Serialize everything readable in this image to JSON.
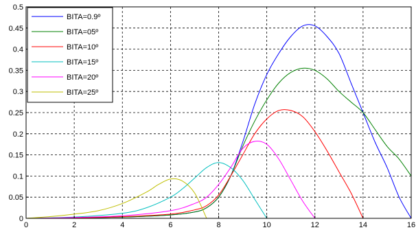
{
  "chart_data": {
    "type": "line",
    "title": "",
    "xlabel": "",
    "ylabel": "",
    "xlim": [
      0,
      16
    ],
    "ylim": [
      0,
      0.5
    ],
    "xticks": [
      0,
      2,
      4,
      6,
      8,
      10,
      12,
      14,
      16
    ],
    "yticks": [
      0,
      0.05,
      0.1,
      0.15,
      0.2,
      0.25,
      0.3,
      0.35,
      0.4,
      0.45,
      0.5
    ],
    "xtick_labels": [
      "0",
      "2",
      "4",
      "6",
      "8",
      "10",
      "12",
      "14",
      "16"
    ],
    "ytick_labels": [
      "0",
      "0.05",
      "0.1",
      "0.15",
      "0.2",
      "0.25",
      "0.3",
      "0.35",
      "0.4",
      "0.45",
      "0.5"
    ],
    "grid": true,
    "grid_style": "dashed",
    "legend_position": "top-left",
    "series": [
      {
        "name": "BITA=0.9º",
        "color": "#0000ff",
        "points": [
          [
            0,
            0
          ],
          [
            2,
            0.001
          ],
          [
            4,
            0.003
          ],
          [
            6,
            0.008
          ],
          [
            7,
            0.015
          ],
          [
            7.5,
            0.025
          ],
          [
            8,
            0.05
          ],
          [
            8.5,
            0.1
          ],
          [
            9,
            0.18
          ],
          [
            9.5,
            0.27
          ],
          [
            10,
            0.34
          ],
          [
            10.5,
            0.39
          ],
          [
            11,
            0.43
          ],
          [
            11.5,
            0.455
          ],
          [
            12,
            0.455
          ],
          [
            12.5,
            0.43
          ],
          [
            13,
            0.39
          ],
          [
            13.5,
            0.32
          ],
          [
            14,
            0.25
          ],
          [
            14.5,
            0.18
          ],
          [
            15,
            0.12
          ],
          [
            15.5,
            0.05
          ],
          [
            16,
            0
          ]
        ]
      },
      {
        "name": "BITA=05º",
        "color": "#008000",
        "points": [
          [
            0,
            0
          ],
          [
            2,
            0.001
          ],
          [
            4,
            0.003
          ],
          [
            6,
            0.008
          ],
          [
            7,
            0.015
          ],
          [
            7.5,
            0.025
          ],
          [
            8,
            0.05
          ],
          [
            8.5,
            0.1
          ],
          [
            9,
            0.17
          ],
          [
            9.5,
            0.23
          ],
          [
            10,
            0.28
          ],
          [
            10.5,
            0.32
          ],
          [
            11,
            0.345
          ],
          [
            11.5,
            0.355
          ],
          [
            12,
            0.35
          ],
          [
            12.5,
            0.33
          ],
          [
            13,
            0.3
          ],
          [
            13.5,
            0.275
          ],
          [
            14,
            0.25
          ],
          [
            14.5,
            0.21
          ],
          [
            15,
            0.17
          ],
          [
            15.5,
            0.14
          ],
          [
            16,
            0.1
          ]
        ]
      },
      {
        "name": "BITA=10º",
        "color": "#ff0000",
        "points": [
          [
            0,
            0
          ],
          [
            2,
            0.001
          ],
          [
            4,
            0.004
          ],
          [
            6,
            0.01
          ],
          [
            7,
            0.02
          ],
          [
            7.5,
            0.03
          ],
          [
            8,
            0.055
          ],
          [
            8.5,
            0.1
          ],
          [
            9,
            0.15
          ],
          [
            9.5,
            0.2
          ],
          [
            10,
            0.235
          ],
          [
            10.5,
            0.255
          ],
          [
            11,
            0.255
          ],
          [
            11.5,
            0.24
          ],
          [
            12,
            0.205
          ],
          [
            12.5,
            0.16
          ],
          [
            13,
            0.11
          ],
          [
            13.5,
            0.06
          ],
          [
            14,
            0
          ]
        ]
      },
      {
        "name": "BITA=15º",
        "color": "#00bfbf",
        "points": [
          [
            0,
            0
          ],
          [
            2,
            0.003
          ],
          [
            4,
            0.012
          ],
          [
            5,
            0.025
          ],
          [
            6,
            0.05
          ],
          [
            6.5,
            0.07
          ],
          [
            7,
            0.095
          ],
          [
            7.5,
            0.12
          ],
          [
            8,
            0.132
          ],
          [
            8.5,
            0.12
          ],
          [
            9,
            0.09
          ],
          [
            9.5,
            0.045
          ],
          [
            10,
            0
          ]
        ]
      },
      {
        "name": "BITA=20º",
        "color": "#ff00ff",
        "points": [
          [
            0,
            0
          ],
          [
            2,
            0.002
          ],
          [
            4,
            0.006
          ],
          [
            6,
            0.018
          ],
          [
            7,
            0.035
          ],
          [
            7.5,
            0.05
          ],
          [
            8,
            0.08
          ],
          [
            8.5,
            0.12
          ],
          [
            9,
            0.165
          ],
          [
            9.5,
            0.182
          ],
          [
            10,
            0.175
          ],
          [
            10.5,
            0.14
          ],
          [
            11,
            0.09
          ],
          [
            11.5,
            0.04
          ],
          [
            12,
            0
          ]
        ]
      },
      {
        "name": "BITA=25º",
        "color": "#bfbf00",
        "points": [
          [
            0,
            0
          ],
          [
            1,
            0.004
          ],
          [
            2,
            0.01
          ],
          [
            3,
            0.018
          ],
          [
            4,
            0.035
          ],
          [
            5,
            0.062
          ],
          [
            5.5,
            0.08
          ],
          [
            6,
            0.093
          ],
          [
            6.5,
            0.088
          ],
          [
            7,
            0.06
          ],
          [
            7.5,
            0
          ]
        ]
      }
    ]
  }
}
